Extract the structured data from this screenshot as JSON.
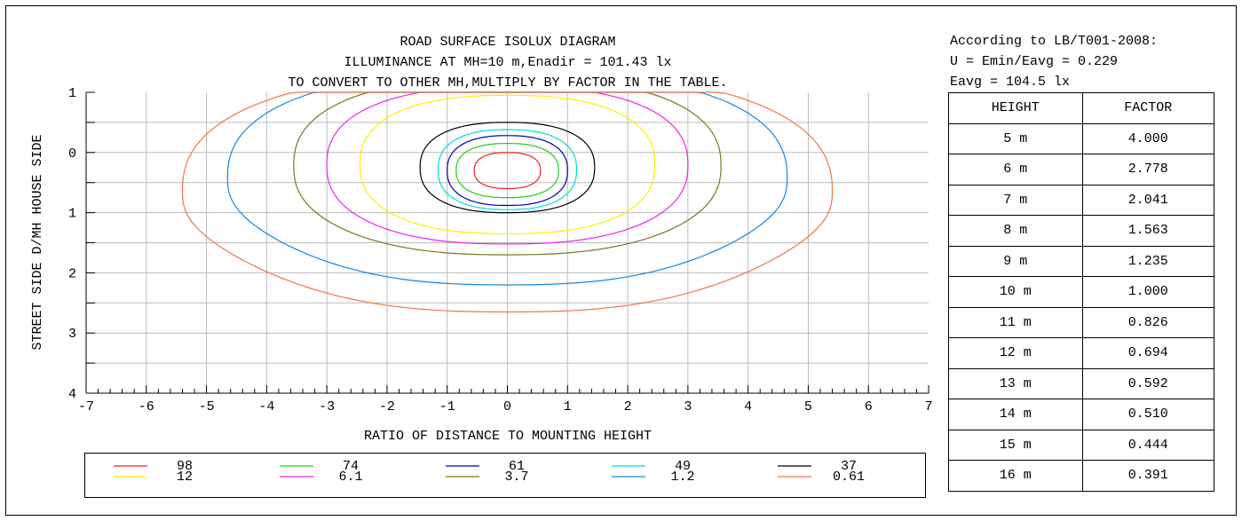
{
  "chart_data": {
    "type": "contour",
    "title_lines": [
      "ROAD SURFACE ISOLUX DIAGRAM",
      "ILLUMINANCE AT MH=10 m,Enadir  = 101.43 lx",
      "TO CONVERT TO OTHER MH,MULTIPLY BY FACTOR IN THE TABLE."
    ],
    "xlabel": "RATIO OF DISTANCE TO MOUNTING HEIGHT",
    "ylabel": "STREET SIDE   D/MH   HOUSE SIDE",
    "xlim": [
      -7,
      7
    ],
    "x_ticks": [
      "-7",
      "-6",
      "-5",
      "-4",
      "-3",
      "-2",
      "-1",
      "0",
      "1",
      "2",
      "3",
      "4",
      "5",
      "6",
      "7"
    ],
    "y_tick_labels": [
      {
        "value": -1,
        "label": "1"
      },
      {
        "value": 0,
        "label": "0"
      },
      {
        "value": 1,
        "label": "1"
      },
      {
        "value": 2,
        "label": "2"
      },
      {
        "value": 3,
        "label": "3"
      },
      {
        "value": 4,
        "label": "4"
      }
    ],
    "ylim": [
      -1,
      4
    ],
    "grid": true,
    "levels": [
      {
        "label": "98",
        "color": "#ee2222",
        "hw": 0.55,
        "yt": 0.0,
        "yb": 0.6,
        "yk": 0.0
      },
      {
        "label": "74",
        "color": "#22cc22",
        "hw": 0.85,
        "yt": -0.15,
        "yb": 0.75,
        "yk": 0.0
      },
      {
        "label": "61",
        "color": "#0000bb",
        "hw": 1.0,
        "yt": -0.28,
        "yb": 0.88,
        "yk": 0.0
      },
      {
        "label": "49",
        "color": "#00dddd",
        "hw": 1.15,
        "yt": -0.38,
        "yb": 0.95,
        "yk": 0.0
      },
      {
        "label": "37",
        "color": "#000000",
        "hw": 1.45,
        "yt": -0.5,
        "yb": 1.0,
        "yk": 0.0
      },
      {
        "label": "12",
        "color": "#ffee00",
        "hw": 2.45,
        "yt": -0.95,
        "yb": 1.35,
        "yk": 0.0
      },
      {
        "label": "6.1",
        "color": "#ee22ee",
        "hw": 3.0,
        "yt": -1.1,
        "yb": 1.52,
        "yk": 0.05
      },
      {
        "label": "3.7",
        "color": "#777722",
        "hw": 3.55,
        "yt": -1.25,
        "yb": 1.7,
        "yk": 0.1
      },
      {
        "label": "1.2",
        "color": "#1188dd",
        "hw": 4.65,
        "yt": -1.35,
        "yb": 2.2,
        "yk": 0.5
      },
      {
        "label": "0.61",
        "color": "#ee7744",
        "hw": 5.4,
        "yt": -1.35,
        "yb": 2.65,
        "yk": 0.7
      }
    ]
  },
  "info": {
    "line1": "According to LB/T001-2008:",
    "line2": "U = Emin/Eavg = 0.229",
    "line3": "Eavg = 104.5 lx"
  },
  "table": {
    "headers": [
      "HEIGHT",
      "FACTOR"
    ],
    "rows": [
      [
        "5 m",
        "4.000"
      ],
      [
        "6 m",
        "2.778"
      ],
      [
        "7 m",
        "2.041"
      ],
      [
        "8 m",
        "1.563"
      ],
      [
        "9 m",
        "1.235"
      ],
      [
        "10 m",
        "1.000"
      ],
      [
        "11 m",
        "0.826"
      ],
      [
        "12 m",
        "0.694"
      ],
      [
        "13 m",
        "0.592"
      ],
      [
        "14 m",
        "0.510"
      ],
      [
        "15 m",
        "0.444"
      ],
      [
        "16 m",
        "0.391"
      ]
    ]
  }
}
